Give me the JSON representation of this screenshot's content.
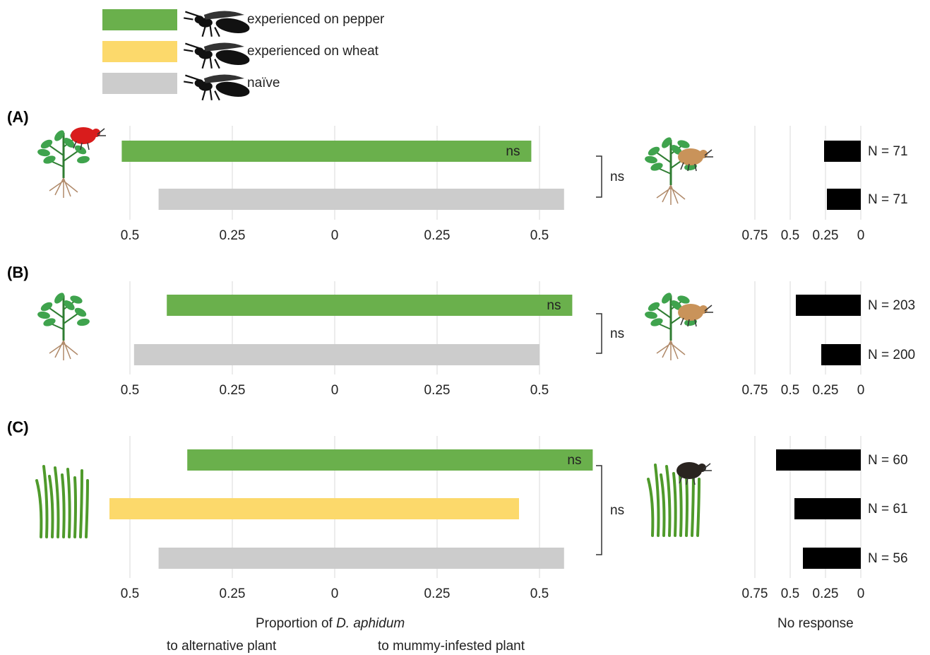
{
  "legend": [
    {
      "label": "experienced on pepper",
      "color": "#6ab04c"
    },
    {
      "label": "experienced on wheat",
      "color": "#fcd96b"
    },
    {
      "label": "naïve",
      "color": "#cccccc"
    }
  ],
  "colors": {
    "pepper": "#6ab04c",
    "wheat": "#fcd96b",
    "naive": "#cccccc",
    "no_response": "#000000",
    "aphid_red": "#d91c1c",
    "mummy": "#c9935a",
    "gridline": "#d9d9d9"
  },
  "chart_data": {
    "type": "bar",
    "orientation": "horizontal",
    "left_axis": {
      "ticks": [
        "0.5",
        "0.25",
        "0",
        "0.25",
        "0.5"
      ],
      "range": [
        -0.5,
        0.5
      ]
    },
    "right_axis": {
      "ticks": [
        "0.75",
        "0.5",
        "0.25",
        "0"
      ],
      "range": [
        0,
        0.75
      ]
    },
    "panels": [
      {
        "label": "(A)",
        "alternative_icon": "pepper-plant-with-red-aphid-icon",
        "infested_icon": "pepper-plant-with-mummy-icon",
        "bracket_label": "ns",
        "bars": [
          {
            "group": "experienced on pepper",
            "color": "#6ab04c",
            "alternative": 0.52,
            "mummy": 0.48,
            "label": "ns",
            "no_response": 0.26,
            "n": "N = 71"
          },
          {
            "group": "naïve",
            "color": "#cccccc",
            "alternative": 0.43,
            "mummy": 0.56,
            "label": "",
            "no_response": 0.24,
            "n": "N = 71"
          }
        ]
      },
      {
        "label": "(B)",
        "alternative_icon": "pepper-plant-icon",
        "infested_icon": "pepper-plant-with-mummy-icon",
        "bracket_label": "ns",
        "bars": [
          {
            "group": "experienced on pepper",
            "color": "#6ab04c",
            "alternative": 0.41,
            "mummy": 0.58,
            "label": "ns",
            "no_response": 0.46,
            "n": "N = 203"
          },
          {
            "group": "naïve",
            "color": "#cccccc",
            "alternative": 0.49,
            "mummy": 0.5,
            "label": "",
            "no_response": 0.28,
            "n": "N = 200"
          }
        ]
      },
      {
        "label": "(C)",
        "alternative_icon": "wheat-icon",
        "infested_icon": "wheat-with-mummy-icon",
        "bracket_label": "ns",
        "bars": [
          {
            "group": "experienced on pepper",
            "color": "#6ab04c",
            "alternative": 0.36,
            "mummy": 0.63,
            "label": "ns",
            "no_response": 0.6,
            "n": "N = 60"
          },
          {
            "group": "experienced on wheat",
            "color": "#fcd96b",
            "alternative": 0.55,
            "mummy": 0.45,
            "label": "",
            "no_response": 0.47,
            "n": "N = 61"
          },
          {
            "group": "naïve",
            "color": "#cccccc",
            "alternative": 0.43,
            "mummy": 0.56,
            "label": "",
            "no_response": 0.41,
            "n": "N = 56"
          }
        ]
      }
    ]
  },
  "xlabel": {
    "prefix": "Proportion of ",
    "species": "D. aphidum"
  },
  "sub_left": "to alternative plant",
  "sub_right": "to mummy-infested plant",
  "right_xlabel": "No response"
}
